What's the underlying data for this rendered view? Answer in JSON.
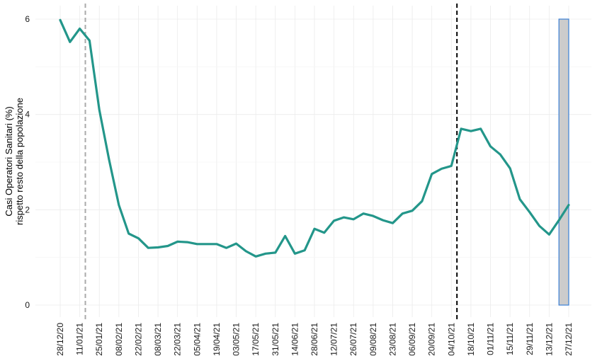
{
  "chart_data": {
    "type": "line",
    "ylabel_line1": "Casi Operatori Sanitari (%)",
    "ylabel_line2": "rispetto resto della popolazione",
    "xlabel": "",
    "ylim": [
      0,
      6
    ],
    "yticks": [
      0,
      2,
      4,
      6
    ],
    "grid": true,
    "x_tick_labels": [
      "28/12/20",
      "11/01/21",
      "25/01/21",
      "08/02/21",
      "22/02/21",
      "08/03/21",
      "22/03/21",
      "05/04/21",
      "19/04/21",
      "03/05/21",
      "17/05/21",
      "31/05/21",
      "14/06/21",
      "28/06/21",
      "12/07/21",
      "26/07/21",
      "09/08/21",
      "23/08/21",
      "06/09/21",
      "20/09/21",
      "04/10/21",
      "18/10/21",
      "01/11/21",
      "15/11/21",
      "29/11/21",
      "13/12/21",
      "27/12/21"
    ],
    "series": [
      {
        "color": "#23968a",
        "x": [
          "28/12/20",
          "04/01/21",
          "11/01/21",
          "18/01/21",
          "25/01/21",
          "01/02/21",
          "08/02/21",
          "15/02/21",
          "22/02/21",
          "01/03/21",
          "08/03/21",
          "15/03/21",
          "22/03/21",
          "29/03/21",
          "05/04/21",
          "12/04/21",
          "19/04/21",
          "26/04/21",
          "03/05/21",
          "10/05/21",
          "17/05/21",
          "24/05/21",
          "31/05/21",
          "07/06/21",
          "14/06/21",
          "21/06/21",
          "28/06/21",
          "05/07/21",
          "12/07/21",
          "19/07/21",
          "26/07/21",
          "02/08/21",
          "09/08/21",
          "16/08/21",
          "23/08/21",
          "30/08/21",
          "06/09/21",
          "13/09/21",
          "20/09/21",
          "27/09/21",
          "04/10/21",
          "11/10/21",
          "18/10/21",
          "25/10/21",
          "01/11/21",
          "08/11/21",
          "15/11/21",
          "22/11/21",
          "29/11/21",
          "06/12/21",
          "13/12/21",
          "20/12/21"
        ],
        "values": [
          5.98,
          5.52,
          5.8,
          5.55,
          4.1,
          3.05,
          2.1,
          1.5,
          1.4,
          1.2,
          1.21,
          1.24,
          1.33,
          1.32,
          1.28,
          1.28,
          1.28,
          1.2,
          1.29,
          1.13,
          1.02,
          1.08,
          1.1,
          1.45,
          1.08,
          1.15,
          1.6,
          1.52,
          1.77,
          1.84,
          1.8,
          1.92,
          1.87,
          1.78,
          1.72,
          1.92,
          1.98,
          2.18,
          2.75,
          2.86,
          2.92,
          3.7,
          3.65,
          3.7,
          3.33,
          3.16,
          2.87,
          2.22,
          1.95,
          1.66,
          1.48,
          1.78
        ]
      }
    ],
    "extension": {
      "from": "20/12/21",
      "to": "27/12/21",
      "values": [
        1.78,
        2.1
      ]
    },
    "vlines": [
      {
        "x": "15/01/21",
        "style": "dashed",
        "color": "#aaaaaa"
      },
      {
        "x": "08/10/21",
        "style": "dashed",
        "color": "#000000"
      }
    ],
    "highlight_rect": {
      "x_from": "20/12/21",
      "x_to": "27/12/21",
      "y_from": 0,
      "y_to": 6,
      "fill": "#cccccc",
      "stroke": "#3a7fd5"
    }
  }
}
